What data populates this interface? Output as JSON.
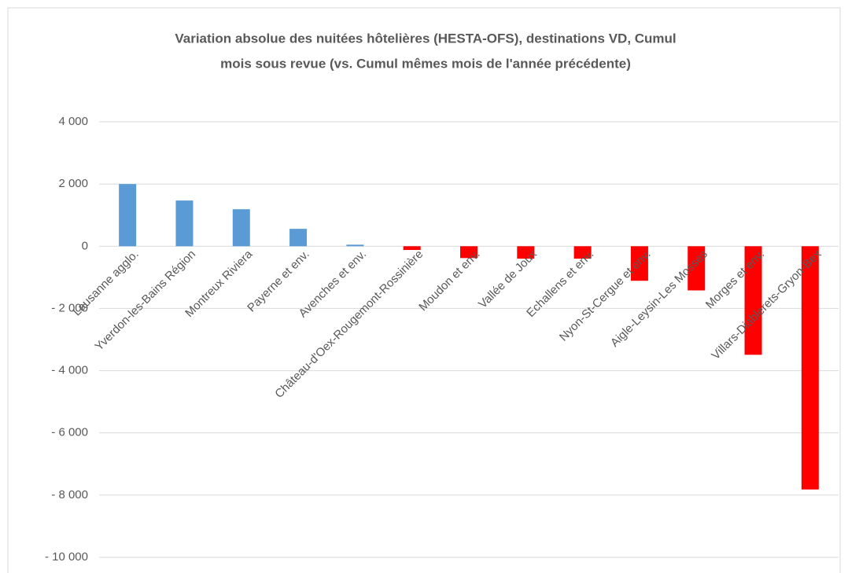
{
  "chart_data": {
    "type": "bar",
    "title": [
      "Variation absolue des nuitées hôtelières (HESTA-OFS), destinations VD, Cumul",
      "mois sous revue (vs. Cumul mêmes mois de l'année précédente)"
    ],
    "categories": [
      "Lausanne agglo.",
      "Yverdon-les-Bains Région",
      "Montreux Riviera",
      "Payerne et env.",
      "Avenches et env.",
      "Château-d'Oex-Rougemont-Rossinière",
      "Moudon et env.",
      "Vallée de Joux",
      "Echallens et env.",
      "Nyon-St-Cergue et env.",
      "Aigle-Leysin-Les Mosses",
      "Morges et env.",
      "Villars-Diablerets-Gryon-Bex"
    ],
    "values": [
      2000,
      1470,
      1190,
      560,
      50,
      -120,
      -380,
      -400,
      -400,
      -1110,
      -1420,
      -3490,
      -7820
    ],
    "colors": [
      "#5b9bd5",
      "#5b9bd5",
      "#5b9bd5",
      "#5b9bd5",
      "#5b9bd5",
      "#ff0000",
      "#ff0000",
      "#ff0000",
      "#ff0000",
      "#ff0000",
      "#ff0000",
      "#ff0000",
      "#ff0000"
    ],
    "ylim": [
      -10000,
      4000
    ],
    "yticks": [
      {
        "value": 4000,
        "label": "4 000"
      },
      {
        "value": 2000,
        "label": "2 000"
      },
      0,
      {
        "value": -2000,
        "label": "- 2 000"
      },
      {
        "value": -4000,
        "label": "- 4 000"
      },
      {
        "value": -6000,
        "label": "- 6 000"
      },
      {
        "value": -8000,
        "label": "- 8 000"
      },
      {
        "value": -10000,
        "label": "- 10 000"
      }
    ],
    "grid": true
  }
}
